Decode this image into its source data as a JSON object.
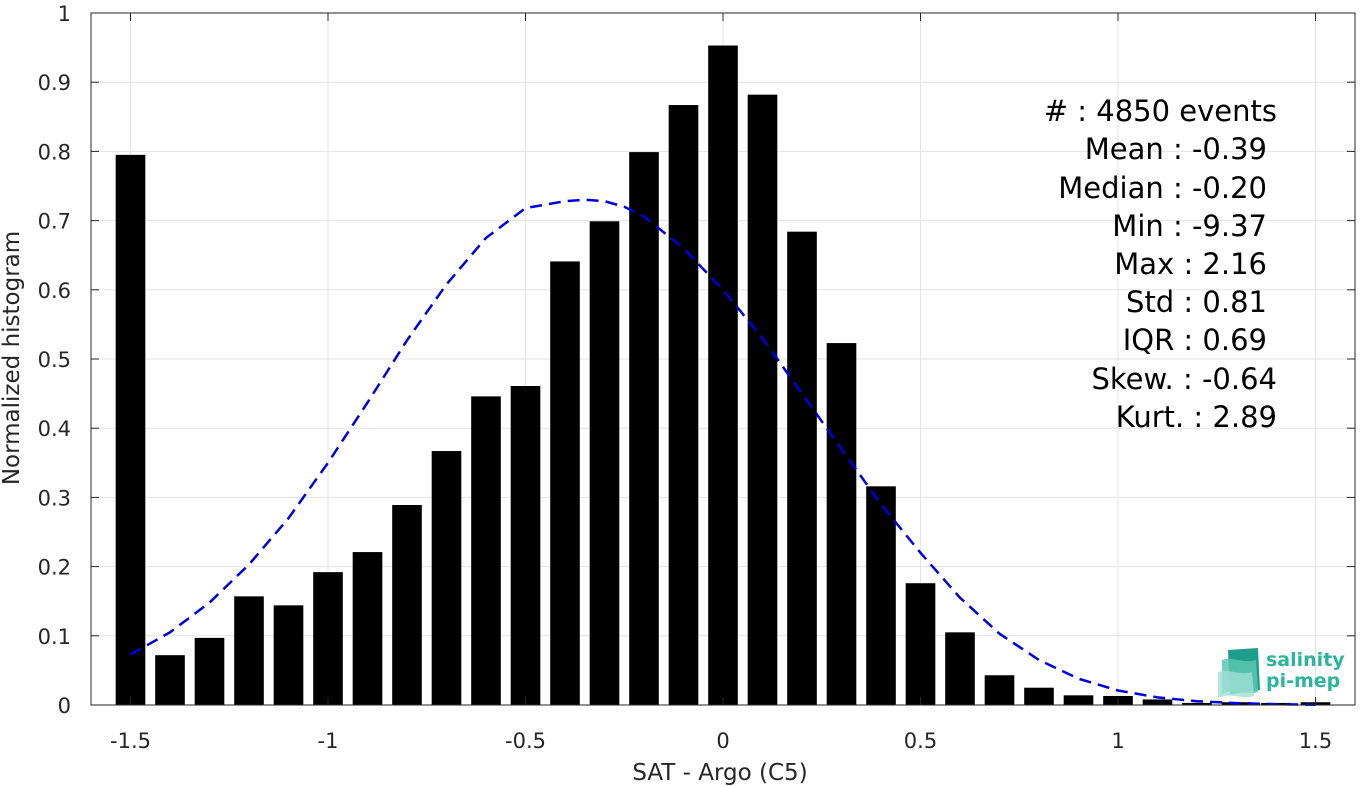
{
  "chart_data": {
    "type": "bar",
    "xlabel": "SAT - Argo (C5)",
    "ylabel": "Normalized histogram",
    "xlim": [
      -1.6,
      1.6
    ],
    "ylim": [
      0,
      1
    ],
    "grid": true,
    "bar_width": 0.075,
    "bar_color": "#000000",
    "x_ticks": [
      -1.5,
      -1,
      -0.5,
      0,
      0.5,
      1,
      1.5
    ],
    "x_tick_labels": [
      "-1.5",
      "-1",
      "-0.5",
      "0",
      "0.5",
      "1",
      "1.5"
    ],
    "y_ticks": [
      0,
      0.1,
      0.2,
      0.3,
      0.4,
      0.5,
      0.6,
      0.7,
      0.8,
      0.9,
      1
    ],
    "y_tick_labels": [
      "0",
      "0.1",
      "0.2",
      "0.3",
      "0.4",
      "0.5",
      "0.6",
      "0.7",
      "0.8",
      "0.9",
      "1"
    ],
    "x": [
      -1.5,
      -1.4,
      -1.3,
      -1.2,
      -1.1,
      -1.0,
      -0.9,
      -0.8,
      -0.7,
      -0.6,
      -0.5,
      -0.4,
      -0.3,
      -0.2,
      -0.1,
      0.0,
      0.1,
      0.2,
      0.3,
      0.4,
      0.5,
      0.6,
      0.7,
      0.8,
      0.9,
      1.0,
      1.1,
      1.2,
      1.3,
      1.4,
      1.5
    ],
    "values": [
      0.795,
      0.072,
      0.097,
      0.157,
      0.144,
      0.192,
      0.221,
      0.289,
      0.367,
      0.446,
      0.461,
      0.641,
      0.699,
      0.799,
      0.867,
      0.953,
      0.882,
      0.684,
      0.523,
      0.316,
      0.176,
      0.105,
      0.043,
      0.025,
      0.014,
      0.013,
      0.008,
      0.003,
      0.004,
      0.003,
      0.004
    ],
    "fit_curve": {
      "style": "dashed",
      "color": "#0000dd",
      "x": [
        -1.5,
        -1.4,
        -1.3,
        -1.2,
        -1.1,
        -1.0,
        -0.9,
        -0.8,
        -0.7,
        -0.6,
        -0.5,
        -0.4,
        -0.35,
        -0.3,
        -0.25,
        -0.2,
        -0.1,
        0.0,
        0.1,
        0.2,
        0.3,
        0.4,
        0.5,
        0.6,
        0.7,
        0.8,
        0.9,
        1.0,
        1.1,
        1.2,
        1.3,
        1.4,
        1.5
      ],
      "y": [
        0.073,
        0.105,
        0.148,
        0.203,
        0.27,
        0.35,
        0.437,
        0.527,
        0.608,
        0.675,
        0.718,
        0.728,
        0.73,
        0.728,
        0.72,
        0.706,
        0.66,
        0.6,
        0.53,
        0.45,
        0.37,
        0.29,
        0.22,
        0.155,
        0.103,
        0.065,
        0.038,
        0.021,
        0.011,
        0.0055,
        0.0027,
        0.0012,
        0.0005
      ]
    },
    "annotation_lines": [
      "#  : 4850 events",
      "Mean : -0.39",
      "Median : -0.20",
      "Min : -9.37",
      "Max : 2.16",
      "Std : 0.81",
      "IQR : 0.69",
      "Skew. : -0.64",
      "Kurt. : 2.89"
    ]
  },
  "logo": {
    "line1": "salinity",
    "line2": "pi-mep",
    "color": "#2bb59b"
  }
}
